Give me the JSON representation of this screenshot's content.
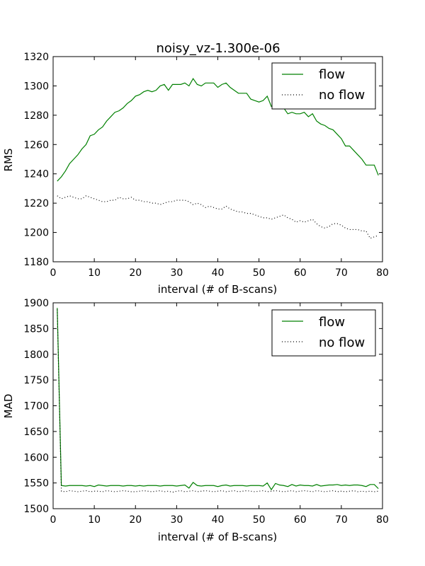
{
  "chart_data": [
    {
      "type": "line",
      "title": "noisy_vz-1.300e-06",
      "xlabel": "interval (# of B-scans)",
      "ylabel": "RMS",
      "xlim": [
        0,
        80
      ],
      "ylim": [
        1180,
        1320
      ],
      "xticks": [
        "0",
        "10",
        "20",
        "30",
        "40",
        "50",
        "60",
        "70",
        "80"
      ],
      "yticks": [
        "1180",
        "1200",
        "1220",
        "1240",
        "1260",
        "1280",
        "1300",
        "1320"
      ],
      "grid": false,
      "legend_position": "top-right",
      "series": [
        {
          "name": "flow",
          "color": "#008000",
          "style": "solid",
          "x": [
            1,
            2,
            3,
            4,
            5,
            6,
            7,
            8,
            9,
            10,
            11,
            12,
            13,
            14,
            15,
            16,
            17,
            18,
            19,
            20,
            21,
            22,
            23,
            24,
            25,
            26,
            27,
            28,
            29,
            30,
            31,
            32,
            33,
            34,
            35,
            36,
            37,
            38,
            39,
            40,
            41,
            42,
            43,
            44,
            45,
            46,
            47,
            48,
            49,
            50,
            51,
            52,
            53,
            54,
            55,
            56,
            57,
            58,
            59,
            60,
            61,
            62,
            63,
            64,
            65,
            66,
            67,
            68,
            69,
            70,
            71,
            72,
            73,
            74,
            75,
            76,
            77,
            78,
            79
          ],
          "values": [
            1235,
            1238,
            1242,
            1247,
            1250,
            1253,
            1257,
            1260,
            1266,
            1267,
            1270,
            1272,
            1276,
            1279,
            1282,
            1283,
            1285,
            1288,
            1290,
            1293,
            1294,
            1296,
            1297,
            1296,
            1297,
            1300,
            1301,
            1297,
            1301,
            1301,
            1301,
            1302,
            1300,
            1305,
            1301,
            1300,
            1302,
            1302,
            1302,
            1299,
            1301,
            1302,
            1299,
            1297,
            1295,
            1295,
            1295,
            1291,
            1290,
            1289,
            1290,
            1293,
            1286,
            1287,
            1288,
            1285,
            1281,
            1282,
            1281,
            1281,
            1282,
            1279,
            1281,
            1276,
            1274,
            1273,
            1271,
            1270,
            1267,
            1264,
            1259,
            1259,
            1256,
            1253,
            1250,
            1246,
            1246,
            1246,
            1239
          ]
        },
        {
          "name": "no flow",
          "color": "#000000",
          "style": "dotted",
          "x": [
            1,
            2,
            3,
            4,
            5,
            6,
            7,
            8,
            9,
            10,
            11,
            12,
            13,
            14,
            15,
            16,
            17,
            18,
            19,
            20,
            21,
            22,
            23,
            24,
            25,
            26,
            27,
            28,
            29,
            30,
            31,
            32,
            33,
            34,
            35,
            36,
            37,
            38,
            39,
            40,
            41,
            42,
            43,
            44,
            45,
            46,
            47,
            48,
            49,
            50,
            51,
            52,
            53,
            54,
            55,
            56,
            57,
            58,
            59,
            60,
            61,
            62,
            63,
            64,
            65,
            66,
            67,
            68,
            69,
            70,
            71,
            72,
            73,
            74,
            75,
            76,
            77,
            78,
            79
          ],
          "values": [
            1225,
            1223,
            1224,
            1225,
            1224,
            1223,
            1223,
            1225,
            1224,
            1223,
            1222,
            1221,
            1221,
            1222,
            1222,
            1224,
            1223,
            1223,
            1224,
            1222,
            1222,
            1221,
            1221,
            1220,
            1220,
            1219,
            1220,
            1221,
            1221,
            1222,
            1222,
            1222,
            1221,
            1219,
            1220,
            1219,
            1217,
            1218,
            1217,
            1216,
            1216,
            1218,
            1216,
            1215,
            1214,
            1214,
            1213,
            1213,
            1212,
            1211,
            1210,
            1210,
            1209,
            1210,
            1211,
            1212,
            1210,
            1209,
            1207,
            1208,
            1207,
            1208,
            1209,
            1206,
            1204,
            1203,
            1204,
            1206,
            1206,
            1205,
            1203,
            1202,
            1202,
            1202,
            1201,
            1201,
            1196,
            1197,
            1198
          ]
        }
      ]
    },
    {
      "type": "line",
      "title": "",
      "xlabel": "interval (# of B-scans)",
      "ylabel": "MAD",
      "xlim": [
        0,
        80
      ],
      "ylim": [
        1500,
        1900
      ],
      "xticks": [
        "0",
        "10",
        "20",
        "30",
        "40",
        "50",
        "60",
        "70",
        "80"
      ],
      "yticks": [
        "1500",
        "1550",
        "1600",
        "1650",
        "1700",
        "1750",
        "1800",
        "1850",
        "1900"
      ],
      "grid": false,
      "legend_position": "top-right",
      "series": [
        {
          "name": "flow",
          "color": "#008000",
          "style": "solid",
          "x": [
            1,
            2,
            3,
            4,
            5,
            6,
            7,
            8,
            9,
            10,
            11,
            12,
            13,
            14,
            15,
            16,
            17,
            18,
            19,
            20,
            21,
            22,
            23,
            24,
            25,
            26,
            27,
            28,
            29,
            30,
            31,
            32,
            33,
            34,
            35,
            36,
            37,
            38,
            39,
            40,
            41,
            42,
            43,
            44,
            45,
            46,
            47,
            48,
            49,
            50,
            51,
            52,
            53,
            54,
            55,
            56,
            57,
            58,
            59,
            60,
            61,
            62,
            63,
            64,
            65,
            66,
            67,
            68,
            69,
            70,
            71,
            72,
            73,
            74,
            75,
            76,
            77,
            78,
            79
          ],
          "values": [
            1890,
            1545,
            1544,
            1545,
            1545,
            1545,
            1545,
            1544,
            1545,
            1543,
            1546,
            1545,
            1544,
            1545,
            1545,
            1545,
            1544,
            1545,
            1545,
            1544,
            1545,
            1544,
            1545,
            1545,
            1545,
            1544,
            1545,
            1545,
            1545,
            1544,
            1545,
            1546,
            1540,
            1551,
            1545,
            1544,
            1545,
            1545,
            1545,
            1543,
            1545,
            1546,
            1544,
            1545,
            1545,
            1545,
            1544,
            1545,
            1545,
            1545,
            1544,
            1550,
            1537,
            1549,
            1546,
            1545,
            1543,
            1547,
            1544,
            1546,
            1545,
            1545,
            1544,
            1547,
            1544,
            1545,
            1546,
            1546,
            1547,
            1545,
            1546,
            1545,
            1546,
            1546,
            1545,
            1543,
            1547,
            1547,
            1539
          ]
        },
        {
          "name": "no flow",
          "color": "#000000",
          "style": "dotted",
          "x": [
            1,
            2,
            3,
            4,
            5,
            6,
            7,
            8,
            9,
            10,
            11,
            12,
            13,
            14,
            15,
            16,
            17,
            18,
            19,
            20,
            21,
            22,
            23,
            24,
            25,
            26,
            27,
            28,
            29,
            30,
            31,
            32,
            33,
            34,
            35,
            36,
            37,
            38,
            39,
            40,
            41,
            42,
            43,
            44,
            45,
            46,
            47,
            48,
            49,
            50,
            51,
            52,
            53,
            54,
            55,
            56,
            57,
            58,
            59,
            60,
            61,
            62,
            63,
            64,
            65,
            66,
            67,
            68,
            69,
            70,
            71,
            72,
            73,
            74,
            75,
            76,
            77,
            78,
            79
          ],
          "values": [
            1887,
            1534,
            1533,
            1535,
            1534,
            1533,
            1534,
            1535,
            1533,
            1534,
            1534,
            1533,
            1535,
            1534,
            1533,
            1534,
            1535,
            1534,
            1533,
            1533,
            1534,
            1535,
            1534,
            1533,
            1534,
            1535,
            1533,
            1534,
            1532,
            1534,
            1535,
            1533,
            1534,
            1535,
            1533,
            1534,
            1535,
            1534,
            1533,
            1534,
            1535,
            1533,
            1534,
            1535,
            1533,
            1534,
            1535,
            1534,
            1533,
            1534,
            1535,
            1533,
            1534,
            1535,
            1534,
            1533,
            1534,
            1535,
            1533,
            1534,
            1535,
            1534,
            1533,
            1535,
            1534,
            1533,
            1534,
            1535,
            1533,
            1534,
            1533,
            1534,
            1535,
            1533,
            1534,
            1533,
            1534,
            1533,
            1534
          ]
        }
      ]
    }
  ]
}
